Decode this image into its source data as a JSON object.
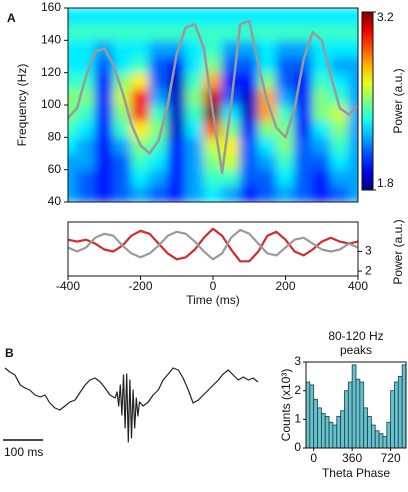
{
  "chart_data": [
    {
      "type": "heatmap",
      "panel": "A",
      "x": [
        -400,
        -350,
        -300,
        -250,
        -200,
        -150,
        -100,
        -50,
        0,
        50,
        100,
        150,
        200,
        250,
        300,
        350,
        400
      ],
      "y": [
        45,
        55,
        65,
        75,
        85,
        95,
        105,
        115,
        125,
        135,
        145,
        155
      ],
      "z": [
        [
          2.2,
          2.1,
          2.0,
          2.1,
          2.2,
          2.1,
          2.0,
          2.2,
          2.3,
          2.2,
          2.0,
          2.1,
          2.2,
          2.1,
          2.0,
          2.1,
          2.2
        ],
        [
          2.2,
          2.1,
          2.0,
          2.1,
          2.3,
          2.2,
          2.0,
          2.2,
          2.4,
          2.4,
          2.1,
          2.1,
          2.3,
          2.1,
          2.0,
          2.2,
          2.2
        ],
        [
          2.2,
          2.2,
          2.0,
          2.1,
          2.4,
          2.3,
          2.0,
          2.2,
          2.5,
          2.6,
          2.1,
          2.2,
          2.4,
          2.1,
          2.1,
          2.3,
          2.2
        ],
        [
          2.3,
          2.2,
          2.0,
          2.2,
          2.5,
          2.4,
          2.0,
          2.2,
          2.6,
          2.7,
          2.1,
          2.3,
          2.5,
          2.1,
          2.2,
          2.4,
          2.2
        ],
        [
          2.4,
          2.3,
          2.0,
          2.4,
          2.7,
          2.5,
          1.9,
          2.3,
          2.9,
          2.5,
          2.0,
          2.5,
          2.5,
          2.0,
          2.3,
          2.5,
          2.2
        ],
        [
          2.5,
          2.4,
          2.0,
          2.5,
          3.0,
          2.4,
          1.9,
          2.4,
          3.2,
          2.3,
          1.9,
          2.8,
          2.4,
          2.0,
          2.5,
          2.6,
          2.2
        ],
        [
          2.5,
          2.5,
          2.0,
          2.6,
          3.0,
          2.2,
          1.9,
          2.5,
          3.1,
          2.1,
          1.9,
          2.8,
          2.2,
          2.0,
          2.5,
          2.4,
          2.2
        ],
        [
          2.4,
          2.4,
          2.0,
          2.5,
          2.7,
          2.1,
          1.9,
          2.4,
          2.8,
          2.0,
          2.0,
          2.5,
          2.1,
          2.0,
          2.4,
          2.3,
          2.2
        ],
        [
          2.3,
          2.3,
          2.1,
          2.3,
          2.4,
          2.1,
          2.0,
          2.3,
          2.5,
          2.1,
          2.1,
          2.3,
          2.1,
          2.1,
          2.3,
          2.2,
          2.2
        ],
        [
          2.3,
          2.3,
          2.2,
          2.3,
          2.3,
          2.2,
          2.2,
          2.3,
          2.4,
          2.2,
          2.2,
          2.3,
          2.2,
          2.2,
          2.3,
          2.3,
          2.3
        ],
        [
          2.4,
          2.4,
          2.4,
          2.4,
          2.4,
          2.4,
          2.4,
          2.4,
          2.4,
          2.4,
          2.4,
          2.4,
          2.4,
          2.4,
          2.4,
          2.4,
          2.4
        ],
        [
          2.3,
          2.3,
          2.3,
          2.3,
          2.3,
          2.3,
          2.3,
          2.3,
          2.3,
          2.3,
          2.3,
          2.3,
          2.3,
          2.3,
          2.3,
          2.3,
          2.3
        ]
      ],
      "xlim": [
        -400,
        400
      ],
      "ylim": [
        40,
        160
      ],
      "yticks": [
        40,
        60,
        80,
        100,
        120,
        140,
        160
      ],
      "ylabel": "Frequency (Hz)",
      "colorbar": {
        "label": "Power (a.u.)",
        "lim": [
          1.8,
          3.2
        ],
        "ticks": [
          1.8,
          3.2
        ]
      },
      "overlay": {
        "color": "#9a9a9a",
        "x": [
          -400,
          -375,
          -350,
          -325,
          -300,
          -275,
          -250,
          -225,
          -200,
          -175,
          -150,
          -125,
          -100,
          -75,
          -50,
          -25,
          0,
          25,
          50,
          75,
          100,
          125,
          150,
          175,
          200,
          225,
          250,
          275,
          300,
          325,
          350,
          375,
          400
        ],
        "values": [
          92,
          98,
          118,
          133,
          135,
          125,
          108,
          88,
          75,
          70,
          78,
          100,
          132,
          148,
          150,
          135,
          95,
          58,
          100,
          150,
          152,
          125,
          102,
          86,
          80,
          98,
          128,
          145,
          140,
          118,
          98,
          94,
          100
        ]
      }
    },
    {
      "type": "line",
      "x": [
        -400,
        -375,
        -350,
        -325,
        -300,
        -275,
        -250,
        -225,
        -200,
        -175,
        -150,
        -125,
        -100,
        -75,
        -50,
        -25,
        0,
        25,
        50,
        75,
        100,
        125,
        150,
        175,
        200,
        225,
        250,
        275,
        300,
        325,
        350,
        375,
        400
      ],
      "series": [
        {
          "color": "#d42a2a",
          "axis": "y2",
          "values": [
            3.6,
            3.5,
            3.6,
            3.4,
            3.1,
            3.0,
            3.3,
            3.8,
            4.05,
            3.9,
            3.4,
            2.9,
            2.6,
            2.7,
            3.1,
            3.7,
            4.16,
            3.8,
            3.1,
            2.5,
            2.5,
            3.0,
            3.8,
            4.0,
            3.6,
            3.0,
            2.8,
            3.1,
            3.5,
            3.7,
            3.5,
            3.4,
            3.5
          ]
        },
        {
          "color": "#9a9a9a",
          "axis": "y2",
          "values": [
            3.2,
            3.0,
            3.2,
            3.7,
            3.9,
            3.8,
            3.3,
            2.9,
            2.7,
            2.9,
            3.3,
            3.8,
            4.0,
            3.9,
            3.5,
            3.0,
            2.6,
            2.9,
            3.7,
            4.1,
            3.9,
            3.4,
            2.9,
            2.8,
            3.2,
            3.6,
            3.7,
            3.4,
            3.1,
            3.0,
            3.1,
            3.4,
            3.2
          ]
        }
      ],
      "xlim": [
        -400,
        400
      ],
      "xticks": [
        -400,
        -200,
        0,
        200,
        400
      ],
      "xlabel": "Time (ms)",
      "y2lim": [
        1.75,
        4.5
      ],
      "y2ticks": [
        2,
        3
      ],
      "y2label": "Power (a.u.)"
    },
    {
      "type": "line",
      "panel": "B",
      "x": [
        0,
        12,
        25,
        38,
        50,
        62,
        75,
        88,
        100,
        112,
        125,
        137,
        150,
        162,
        175,
        188,
        200,
        212,
        225,
        238,
        250,
        262,
        275,
        280,
        284,
        288,
        292,
        296,
        300,
        304,
        308,
        312,
        316,
        320,
        324,
        328,
        332,
        336,
        345,
        358,
        370,
        383,
        395,
        408,
        420,
        433,
        445,
        458,
        470,
        483,
        495,
        508,
        520,
        533,
        545,
        558,
        570,
        583,
        595,
        608,
        620,
        632
      ],
      "series": [
        {
          "color": "#222222",
          "values": [
            3.2,
            2.8,
            2.5,
            1.5,
            1.2,
            1.0,
            0.5,
            0.3,
            0.5,
            -0.3,
            -0.8,
            -1.0,
            -0.6,
            -0.2,
            0.0,
            0.8,
            1.5,
            2.0,
            2.2,
            1.8,
            1.2,
            0.5,
            0.2,
            0.8,
            -0.6,
            1.5,
            -1.5,
            2.5,
            -2.8,
            2.6,
            -4.2,
            2.0,
            -3.8,
            1.0,
            -2.8,
            0.2,
            -1.6,
            -0.2,
            -0.6,
            -0.2,
            0.5,
            1.0,
            2.0,
            2.6,
            3.2,
            3.0,
            2.2,
            1.0,
            -0.3,
            0.0,
            0.5,
            1.0,
            1.5,
            2.0,
            2.6,
            3.0,
            2.5,
            2.0,
            2.3,
            2.0,
            2.2,
            1.8
          ]
        }
      ],
      "xlim": [
        0,
        632
      ],
      "ylim": [
        -5,
        5
      ],
      "scalebar": {
        "value": 100,
        "label": "100 ms"
      }
    },
    {
      "type": "histogram",
      "title": [
        "80-120 Hz",
        "peaks"
      ],
      "bins": [
        -72,
        -36,
        0,
        36,
        72,
        108,
        144,
        180,
        216,
        252,
        288,
        324,
        360,
        396,
        432,
        468,
        504,
        540,
        576,
        612,
        648,
        684,
        720,
        756,
        792,
        828,
        864
      ],
      "values": [
        2.3,
        2.2,
        1.7,
        1.4,
        1.2,
        1.1,
        0.9,
        0.8,
        1.1,
        1.3,
        2.0,
        2.3,
        2.9,
        2.4,
        2.3,
        1.4,
        1.1,
        0.8,
        0.6,
        0.5,
        0.4,
        0.9,
        2.0,
        2.3,
        2.5,
        2.9
      ],
      "color": "#66c2cc",
      "xlim": [
        -72,
        864
      ],
      "xticks": [
        0,
        360,
        720
      ],
      "xlabel": "Theta Phase",
      "ylim": [
        0,
        3
      ],
      "yticks": [
        0,
        1,
        2,
        3
      ],
      "ylabel": "Counts (x10³)"
    }
  ]
}
